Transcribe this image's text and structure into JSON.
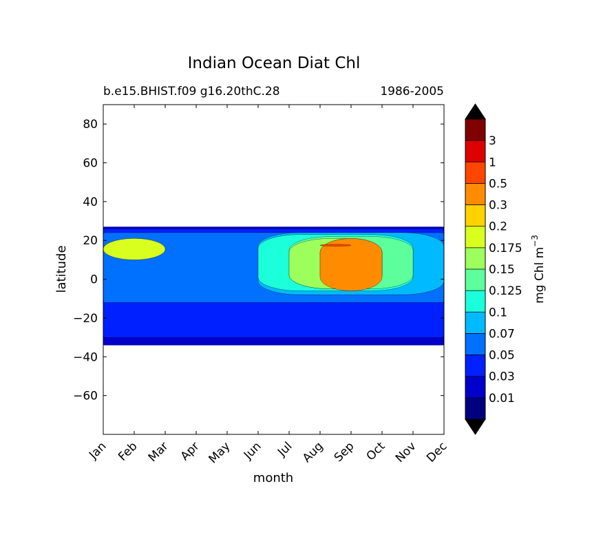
{
  "chart_data": {
    "type": "heatmap",
    "title": "Indian Ocean Diat Chl",
    "subtitle_left": "b.e15.BHIST.f09 g16.20thC.28",
    "subtitle_right": "1986-2005",
    "xlabel": "month",
    "ylabel": "latitude",
    "x_ticks": [
      "Jan",
      "Feb",
      "Mar",
      "Apr",
      "May",
      "Jun",
      "Jul",
      "Aug",
      "Sep",
      "Oct",
      "Nov",
      "Dec"
    ],
    "ylim": [
      -80,
      90
    ],
    "y_ticks": [
      80,
      60,
      40,
      20,
      0,
      -20,
      -40,
      -60
    ],
    "y_tick_labels": [
      "80",
      "60",
      "40",
      "20",
      "0",
      "−20",
      "−40",
      "−60"
    ],
    "data_lat_range": [
      -34,
      27
    ],
    "colorbar": {
      "label_text": "mg Chl m",
      "label_exp": "−3",
      "extend": "both",
      "under_color": "#000000",
      "over_color": "#000000",
      "levels": [
        0.01,
        0.03,
        0.05,
        0.07,
        0.1,
        0.125,
        0.15,
        0.175,
        0.2,
        0.3,
        0.5,
        1,
        3
      ],
      "level_labels": [
        "0.01",
        "0.03",
        "0.05",
        "0.07",
        "0.1",
        "0.125",
        "0.15",
        "0.175",
        "0.2",
        "0.3",
        "0.5",
        "1",
        "3"
      ],
      "colors": [
        "#00007f",
        "#0000cc",
        "#0020ff",
        "#0070ff",
        "#00baff",
        "#1cffdb",
        "#5cff9b",
        "#9cff5c",
        "#d8ff1e",
        "#ffd200",
        "#ff8c00",
        "#ff4600",
        "#dd0000",
        "#800000"
      ]
    },
    "regions": [
      {
        "level": 1,
        "lat": [
          -34,
          27
        ],
        "months": [
          1,
          12
        ]
      },
      {
        "level": 2,
        "lat": [
          -30,
          26
        ],
        "months": [
          1,
          12
        ]
      },
      {
        "level": 3,
        "lat": [
          -12,
          24
        ],
        "months": [
          1,
          12
        ]
      },
      {
        "level": 4,
        "lat": [
          -8,
          24
        ],
        "months": [
          6,
          12
        ]
      },
      {
        "level": 5,
        "lat": [
          -6,
          23
        ],
        "months": [
          6,
          11
        ]
      },
      {
        "level": 6,
        "lat": [
          -5,
          22
        ],
        "months": [
          7,
          11
        ]
      },
      {
        "level": 7,
        "lat": [
          -5,
          21
        ],
        "months": [
          7,
          10
        ]
      },
      {
        "level": 8,
        "lat": [
          10,
          21
        ],
        "months": [
          1,
          3
        ]
      },
      {
        "level": 9,
        "lat": [
          -5,
          21
        ],
        "months": [
          8,
          10
        ]
      },
      {
        "level": 10,
        "lat": [
          -6,
          21
        ],
        "months": [
          8,
          10
        ]
      },
      {
        "level": 11,
        "lat": [
          17,
          18
        ],
        "months": [
          8,
          9
        ]
      }
    ]
  }
}
